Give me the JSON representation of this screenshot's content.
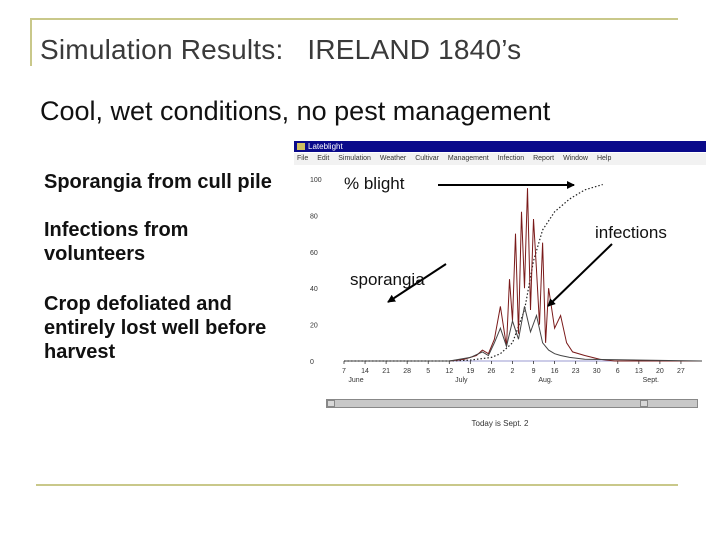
{
  "slide": {
    "title": "Simulation Results:   IRELAND 1840’s",
    "subtitle": "Cool, wet conditions, no pest management",
    "bullets": [
      "Sporangia from cull pile",
      "Infections from volunteers",
      "Crop defoliated and entirely lost well before harvest"
    ]
  },
  "app": {
    "window_title": "Lateblight",
    "menu": [
      "File",
      "Edit",
      "Simulation",
      "Weather",
      "Cultivar",
      "Management",
      "Infection",
      "Report",
      "Window",
      "Help"
    ],
    "status": "Today is Sept. 2"
  },
  "annotations": {
    "blight": "% blight",
    "infections": "infections",
    "sporangia": "sporangia"
  },
  "colors": {
    "accent_rule": "#c9c88a",
    "titlebar": "#0a0a8a"
  },
  "chart_data": {
    "type": "line",
    "y_ticks": [
      "100",
      "80",
      "60",
      "40",
      "20",
      "0"
    ],
    "ylim": [
      0,
      100
    ],
    "x_ticks": [
      "7",
      "14",
      "21",
      "28",
      "5",
      "12",
      "19",
      "26",
      "2",
      "9",
      "16",
      "23",
      "30",
      "6",
      "13",
      "20",
      "27"
    ],
    "x_day_index": [
      0,
      7,
      14,
      21,
      28,
      35,
      42,
      49,
      56,
      63,
      70,
      77,
      84,
      91,
      98,
      105,
      112
    ],
    "month_labels": [
      {
        "label": "June",
        "at": 0
      },
      {
        "label": "July",
        "at": 35
      },
      {
        "label": "Aug.",
        "at": 63
      },
      {
        "label": "Sept.",
        "at": 98
      }
    ],
    "xlim": [
      0,
      119
    ],
    "series": [
      {
        "name": "% blight",
        "style": "dotted",
        "color": "#222222",
        "x": [
          0,
          35,
          42,
          49,
          52,
          56,
          60,
          63,
          66,
          70,
          75,
          80,
          86
        ],
        "y": [
          0,
          0,
          0.5,
          2,
          4,
          10,
          28,
          55,
          72,
          82,
          89,
          94,
          97
        ]
      },
      {
        "name": "infections",
        "style": "solid",
        "color": "#7a1a1a",
        "x": [
          0,
          35,
          40,
          44,
          46,
          48,
          50,
          52,
          54,
          55,
          56,
          57,
          58,
          59,
          60,
          61,
          62,
          63,
          64,
          65,
          66,
          67,
          68,
          70,
          72,
          74,
          76,
          80,
          85,
          90,
          119
        ],
        "y": [
          0,
          0,
          1,
          3,
          6,
          4,
          12,
          30,
          8,
          45,
          22,
          70,
          15,
          82,
          40,
          95,
          28,
          78,
          50,
          20,
          65,
          10,
          40,
          18,
          25,
          10,
          5,
          3,
          1,
          0,
          0
        ]
      },
      {
        "name": "sporangia",
        "style": "solid",
        "color": "#444444",
        "x": [
          0,
          35,
          42,
          46,
          48,
          50,
          52,
          54,
          56,
          58,
          60,
          62,
          64,
          66,
          68,
          70,
          72,
          75,
          80,
          119
        ],
        "y": [
          0,
          0,
          2,
          5,
          3,
          10,
          18,
          8,
          22,
          12,
          30,
          16,
          25,
          10,
          6,
          4,
          3,
          2,
          1,
          0
        ]
      }
    ]
  }
}
